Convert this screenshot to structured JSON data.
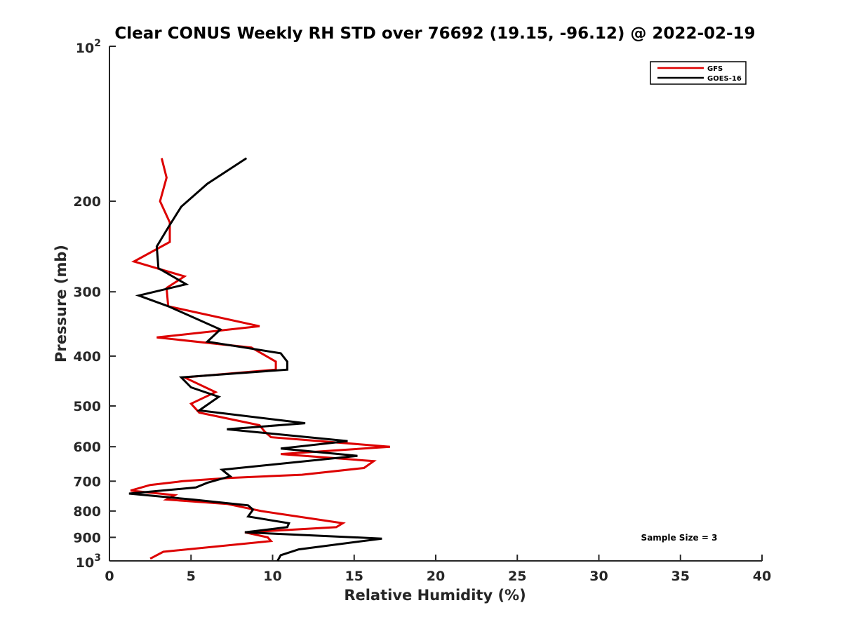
{
  "chart_data": {
    "type": "line",
    "title": "Clear CONUS Weekly RH STD over 76692 (19.15, -96.12) @ 2022-02-19",
    "xlabel": "Relative Humidity (%)",
    "ylabel": "Pressure (mb)",
    "xlim": [
      0,
      40
    ],
    "ylim": [
      100,
      1000
    ],
    "yscale": "log",
    "y_reversed": true,
    "grid": false,
    "legend_position": "top-right",
    "x_ticks": [
      0,
      5,
      10,
      15,
      20,
      25,
      30,
      35,
      40
    ],
    "x_tick_labels": [
      "0",
      "5",
      "10",
      "15",
      "20",
      "25",
      "30",
      "35",
      "40"
    ],
    "y_ticks": [
      200,
      300,
      400,
      500,
      600,
      700,
      800,
      900
    ],
    "y_tick_labels": [
      "200",
      "300",
      "400",
      "500",
      "600",
      "700",
      "800",
      "900"
    ],
    "y_decade_labels": [
      {
        "value": 100,
        "base": "10",
        "exponent": "2"
      },
      {
        "value": 1000,
        "base": "10",
        "exponent": "3"
      }
    ],
    "annotation": "Sample Size = 3",
    "series": [
      {
        "name": "GFS",
        "color": "#dd0000",
        "x": [
          3.2,
          3.5,
          3.1,
          3.7,
          3.7,
          1.5,
          4.6,
          3.5,
          3.6,
          9.2,
          2.9,
          8.7,
          10.2,
          10.2,
          4.6,
          6.5,
          5.0,
          5.5,
          9.2,
          9.5,
          9.9,
          17.2,
          10.5,
          16.2,
          15.6,
          11.8,
          7.3,
          4.5,
          2.5,
          1.3,
          4.0,
          3.5,
          7.2,
          9.3,
          14.3,
          13.9,
          8.3,
          9.7,
          9.9,
          3.3,
          2.5
        ],
        "y": [
          165,
          180,
          200,
          220,
          240,
          262,
          280,
          295,
          320,
          350,
          368,
          385,
          410,
          425,
          440,
          470,
          495,
          515,
          545,
          560,
          575,
          600,
          620,
          640,
          660,
          680,
          690,
          700,
          712,
          730,
          745,
          760,
          775,
          800,
          845,
          860,
          880,
          900,
          915,
          960,
          990
        ]
      },
      {
        "name": "GOES-16",
        "color": "#000000",
        "x": [
          8.4,
          6.0,
          4.4,
          3.6,
          2.9,
          3.0,
          4.7,
          1.8,
          3.6,
          6.8,
          6.0,
          10.5,
          10.9,
          10.9,
          4.4,
          5.0,
          6.7,
          5.5,
          12.0,
          7.2,
          14.6,
          10.5,
          15.2,
          6.9,
          7.4,
          6.0,
          5.3,
          1.2,
          5.1,
          8.5,
          8.8,
          8.5,
          11.0,
          10.9,
          8.3,
          16.7,
          11.6,
          10.5,
          10.3
        ],
        "y": [
          165,
          185,
          205,
          225,
          245,
          270,
          290,
          305,
          320,
          355,
          375,
          395,
          410,
          425,
          440,
          460,
          480,
          510,
          540,
          555,
          585,
          605,
          625,
          665,
          685,
          705,
          720,
          740,
          760,
          780,
          795,
          820,
          845,
          860,
          880,
          905,
          950,
          975,
          1000
        ]
      }
    ]
  }
}
